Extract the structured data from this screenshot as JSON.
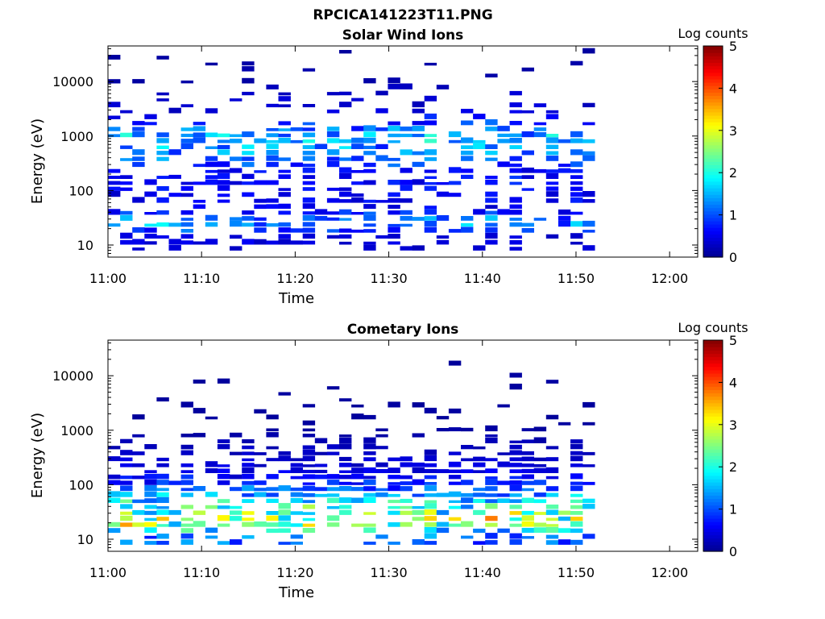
{
  "figure_title": "RPCICA141223T11.PNG",
  "colors": {
    "colormap": [
      "#00008f",
      "#0000ff",
      "#0080ff",
      "#00ffff",
      "#80ff80",
      "#ffff00",
      "#ff8000",
      "#ff0000",
      "#800000"
    ],
    "background": "#ffffff",
    "axes": "#000000"
  },
  "chart_data": [
    {
      "type": "heatmap",
      "title": "Solar Wind Ions",
      "xlabel": "Time",
      "ylabel": "Energy (eV)",
      "x_tick_labels": [
        "11:00",
        "11:10",
        "11:20",
        "11:30",
        "11:40",
        "11:50",
        "12:00"
      ],
      "x_ticks_minutes": [
        0,
        10,
        20,
        30,
        40,
        50,
        60
      ],
      "xlim_minutes": [
        0,
        63
      ],
      "y_scale": "log",
      "y_tick_labels": [
        "10",
        "100",
        "1000",
        "10000"
      ],
      "y_ticks": [
        10,
        100,
        1000,
        10000
      ],
      "ylim": [
        6,
        45000
      ],
      "data_extent_minutes": [
        0,
        52.5
      ],
      "sweep_period_minutes": 3.2,
      "colorbar": {
        "label": "Log counts",
        "range": [
          0,
          5
        ],
        "tick_labels": [
          "0",
          "1",
          "2",
          "3",
          "4",
          "5"
        ]
      },
      "energy_profile": [
        {
          "energy_ev": 8,
          "log_counts": 0.5,
          "occupancy": 0.3
        },
        {
          "energy_ev": 15,
          "log_counts": 0.5,
          "occupancy": 0.6
        },
        {
          "energy_ev": 25,
          "log_counts": 1.7,
          "occupancy": 0.75
        },
        {
          "energy_ev": 50,
          "log_counts": 0.6,
          "occupancy": 0.5
        },
        {
          "energy_ev": 100,
          "log_counts": 0.7,
          "occupancy": 0.65
        },
        {
          "energy_ev": 250,
          "log_counts": 0.8,
          "occupancy": 0.6
        },
        {
          "energy_ev": 500,
          "log_counts": 1.6,
          "occupancy": 0.75
        },
        {
          "energy_ev": 1000,
          "log_counts": 1.8,
          "occupancy": 0.7
        },
        {
          "energy_ev": 2500,
          "log_counts": 0.6,
          "occupancy": 0.35
        },
        {
          "energy_ev": 10000,
          "log_counts": 0.2,
          "occupancy": 0.12
        },
        {
          "energy_ev": 40000,
          "log_counts": 0.1,
          "occupancy": 0.08
        }
      ]
    },
    {
      "type": "heatmap",
      "title": "Cometary Ions",
      "xlabel": "Time",
      "ylabel": "Energy (eV)",
      "x_tick_labels": [
        "11:00",
        "11:10",
        "11:20",
        "11:30",
        "11:40",
        "11:50",
        "12:00"
      ],
      "x_ticks_minutes": [
        0,
        10,
        20,
        30,
        40,
        50,
        60
      ],
      "xlim_minutes": [
        0,
        63
      ],
      "y_scale": "log",
      "y_tick_labels": [
        "10",
        "100",
        "1000",
        "10000"
      ],
      "y_ticks": [
        10,
        100,
        1000,
        10000
      ],
      "ylim": [
        6,
        45000
      ],
      "data_extent_minutes": [
        0,
        52.5
      ],
      "sweep_period_minutes": 3.2,
      "colorbar": {
        "label": "Log counts",
        "range": [
          0,
          5
        ],
        "tick_labels": [
          "0",
          "1",
          "2",
          "3",
          "4",
          "5"
        ]
      },
      "energy_profile": [
        {
          "energy_ev": 12,
          "log_counts": 1.3,
          "occupancy": 0.6
        },
        {
          "energy_ev": 20,
          "log_counts": 3.4,
          "occupancy": 0.85
        },
        {
          "energy_ev": 35,
          "log_counts": 2.6,
          "occupancy": 0.9
        },
        {
          "energy_ev": 60,
          "log_counts": 1.8,
          "occupancy": 0.95
        },
        {
          "energy_ev": 100,
          "log_counts": 1.0,
          "occupancy": 0.9
        },
        {
          "energy_ev": 200,
          "log_counts": 0.5,
          "occupancy": 0.85
        },
        {
          "energy_ev": 500,
          "log_counts": 0.3,
          "occupancy": 0.5
        },
        {
          "energy_ev": 1200,
          "log_counts": 0.1,
          "occupancy": 0.25
        },
        {
          "energy_ev": 2500,
          "log_counts": 0.1,
          "occupancy": 0.15
        },
        {
          "energy_ev": 20000,
          "log_counts": 0.1,
          "occupancy": 0.01
        }
      ]
    }
  ]
}
